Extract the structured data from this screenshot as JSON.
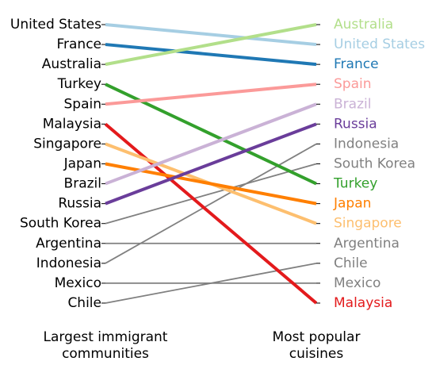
{
  "chart_data": {
    "type": "line",
    "x": [
      "Largest immigrant\ncommunities",
      "Most popular\ncuisines"
    ],
    "left_order": [
      "United States",
      "France",
      "Australia",
      "Turkey",
      "Spain",
      "Malaysia",
      "Singapore",
      "Japan",
      "Brazil",
      "Russia",
      "South Korea",
      "Argentina",
      "Indonesia",
      "Mexico",
      "Chile"
    ],
    "right_order": [
      "Australia",
      "United States",
      "France",
      "Spain",
      "Brazil",
      "Russia",
      "Indonesia",
      "South Korea",
      "Turkey",
      "Japan",
      "Singapore",
      "Argentina",
      "Chile",
      "Mexico",
      "Malaysia"
    ],
    "series": [
      {
        "name": "United States",
        "values": [
          1,
          2
        ],
        "color": "#a6cee3",
        "highlight": true
      },
      {
        "name": "France",
        "values": [
          2,
          3
        ],
        "color": "#1f78b4",
        "highlight": true
      },
      {
        "name": "Australia",
        "values": [
          3,
          1
        ],
        "color": "#b2df8a",
        "highlight": true
      },
      {
        "name": "Turkey",
        "values": [
          4,
          9
        ],
        "color": "#33a02c",
        "highlight": true
      },
      {
        "name": "Spain",
        "values": [
          5,
          4
        ],
        "color": "#fb9a99",
        "highlight": true
      },
      {
        "name": "Malaysia",
        "values": [
          6,
          15
        ],
        "color": "#e31a1c",
        "highlight": true
      },
      {
        "name": "Singapore",
        "values": [
          7,
          11
        ],
        "color": "#fdbf6f",
        "highlight": true
      },
      {
        "name": "Japan",
        "values": [
          8,
          10
        ],
        "color": "#ff7f00",
        "highlight": true
      },
      {
        "name": "Brazil",
        "values": [
          9,
          5
        ],
        "color": "#cab2d6",
        "highlight": true
      },
      {
        "name": "Russia",
        "values": [
          10,
          6
        ],
        "color": "#6a3d9a",
        "highlight": true
      },
      {
        "name": "South Korea",
        "values": [
          11,
          8
        ],
        "color": "#808080",
        "highlight": false
      },
      {
        "name": "Argentina",
        "values": [
          12,
          12
        ],
        "color": "#808080",
        "highlight": false
      },
      {
        "name": "Indonesia",
        "values": [
          13,
          7
        ],
        "color": "#808080",
        "highlight": false
      },
      {
        "name": "Mexico",
        "values": [
          14,
          14
        ],
        "color": "#808080",
        "highlight": false
      },
      {
        "name": "Chile",
        "values": [
          15,
          13
        ],
        "color": "#808080",
        "highlight": false
      }
    ],
    "xlabel": "",
    "ylabel": "",
    "grid": false
  }
}
